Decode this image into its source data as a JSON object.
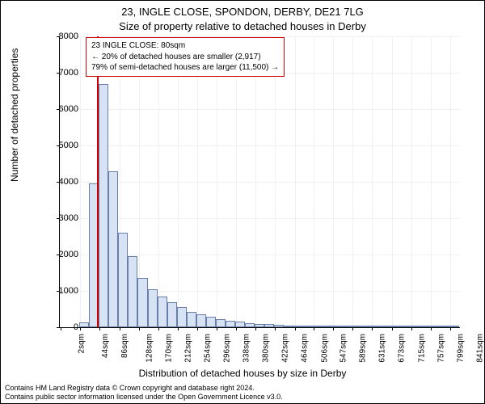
{
  "title_line1": "23, INGLE CLOSE, SPONDON, DERBY, DE21 7LG",
  "title_line2": "Size of property relative to detached houses in Derby",
  "annotation": {
    "line1": "23 INGLE CLOSE: 80sqm",
    "line2": "← 20% of detached houses are smaller (2,917)",
    "line3": "79% of semi-detached houses are larger (11,500) →",
    "border_color": "#cc0000"
  },
  "chart": {
    "type": "histogram",
    "xlabel": "Distribution of detached houses by size in Derby",
    "ylabel": "Number of detached properties",
    "ylim": [
      0,
      8000
    ],
    "ytick_step": 1000,
    "bar_fill": "#d7e3f4",
    "bar_stroke": "#6a7fa8",
    "grid_color": "#eef0f5",
    "background_color": "#ffffff",
    "marker_line_color": "#cc0000",
    "marker_x": 80,
    "x_min": 0,
    "x_max": 862,
    "bin_width": 21,
    "values": [
      0,
      0,
      130,
      3950,
      6700,
      4300,
      2600,
      1950,
      1350,
      1050,
      850,
      700,
      550,
      420,
      350,
      280,
      230,
      180,
      150,
      120,
      100,
      80,
      60,
      50,
      40,
      30,
      25,
      20,
      18,
      15,
      12,
      10,
      8,
      6,
      5,
      4,
      3,
      2,
      2,
      1,
      1
    ],
    "xtick_labels": [
      "2sqm",
      "44sqm",
      "86sqm",
      "128sqm",
      "170sqm",
      "212sqm",
      "254sqm",
      "296sqm",
      "338sqm",
      "380sqm",
      "422sqm",
      "464sqm",
      "506sqm",
      "547sqm",
      "589sqm",
      "631sqm",
      "673sqm",
      "715sqm",
      "757sqm",
      "799sqm",
      "841sqm"
    ],
    "xtick_positions": [
      2,
      44,
      86,
      128,
      170,
      212,
      254,
      296,
      338,
      380,
      422,
      464,
      506,
      547,
      589,
      631,
      673,
      715,
      757,
      799,
      841
    ]
  },
  "footer": {
    "line1": "Contains HM Land Registry data © Crown copyright and database right 2024.",
    "line2": "Contains public sector information licensed under the Open Government Licence v3.0."
  }
}
